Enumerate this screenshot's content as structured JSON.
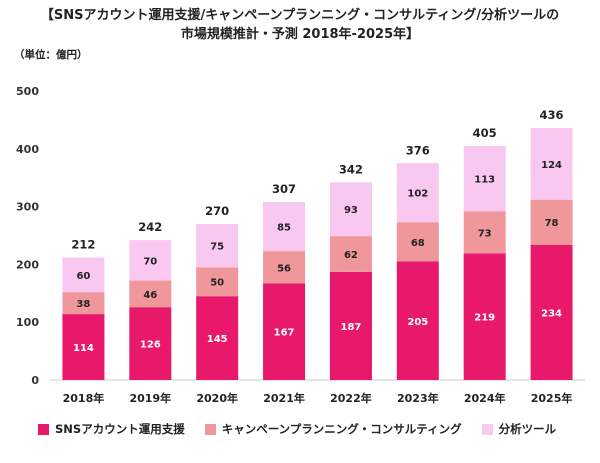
{
  "title_line1": "【SNSアカウント運用支援/キャンペーンプランニング・コンサルティング/分析ツールの",
  "title_line2": "市場規模推計・予測 2018年-2025年】",
  "unit_label": "（単位：億円）",
  "colors": {
    "sns": "#e8196b",
    "campaign": "#f0979c",
    "tool": "#f8c8f0"
  },
  "chart_data": {
    "type": "bar",
    "stacked": true,
    "categories": [
      "2018年",
      "2019年",
      "2020年",
      "2021年",
      "2022年",
      "2023年",
      "2024年",
      "2025年"
    ],
    "series": [
      {
        "name": "SNSアカウント運用支援",
        "values": [
          114,
          126,
          145,
          167,
          187,
          205,
          219,
          234
        ]
      },
      {
        "name": "キャンペーンプランニング・コンサルティング",
        "values": [
          38,
          46,
          50,
          56,
          62,
          68,
          73,
          78
        ]
      },
      {
        "name": "分析ツール",
        "values": [
          60,
          70,
          75,
          85,
          93,
          102,
          113,
          124
        ]
      }
    ],
    "totals": [
      212,
      242,
      270,
      307,
      342,
      376,
      405,
      436
    ],
    "ylim": [
      0,
      500
    ],
    "yticks": [
      0,
      100,
      200,
      300,
      400,
      500
    ],
    "grid": false,
    "legend_position": "bottom"
  }
}
